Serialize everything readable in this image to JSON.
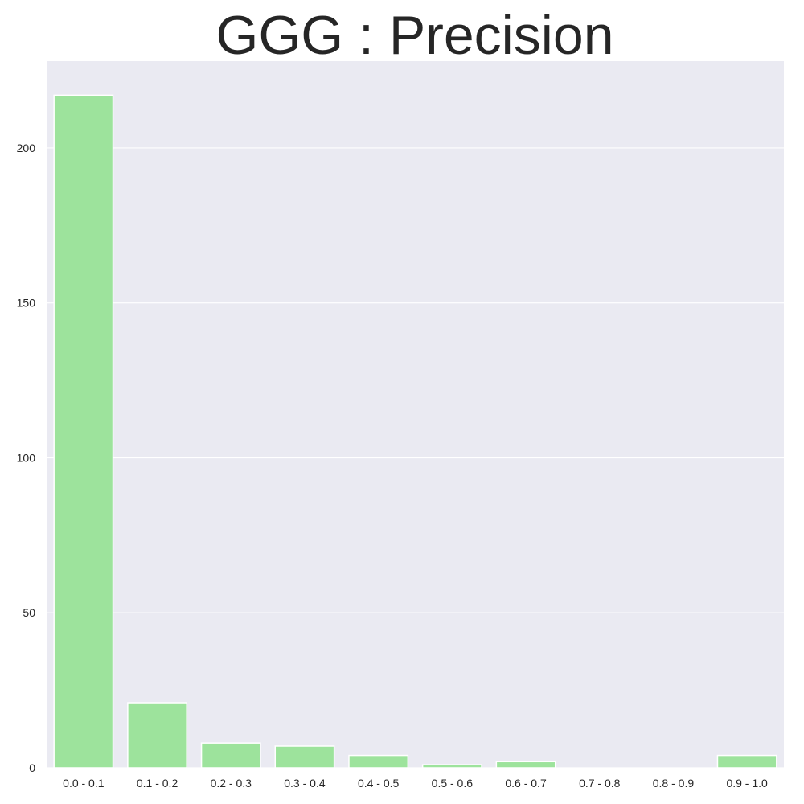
{
  "chart_data": {
    "type": "bar",
    "title": "GGG : Precision",
    "xlabel": "",
    "ylabel": "",
    "categories": [
      "0.0 - 0.1",
      "0.1 - 0.2",
      "0.2 - 0.3",
      "0.3 - 0.4",
      "0.4 - 0.5",
      "0.5 - 0.6",
      "0.6 - 0.7",
      "0.7 - 0.8",
      "0.8 - 0.9",
      "0.9 - 1.0"
    ],
    "values": [
      217,
      21,
      8,
      7,
      4,
      1,
      2,
      0,
      0,
      4
    ],
    "ylim": [
      0,
      228
    ],
    "yticks": [
      0,
      50,
      100,
      150,
      200
    ],
    "grid": true,
    "legend": "none",
    "colors": {
      "bar": "#9de39c",
      "plot_background": "#eaeaf2",
      "grid": "#ffffff"
    }
  }
}
